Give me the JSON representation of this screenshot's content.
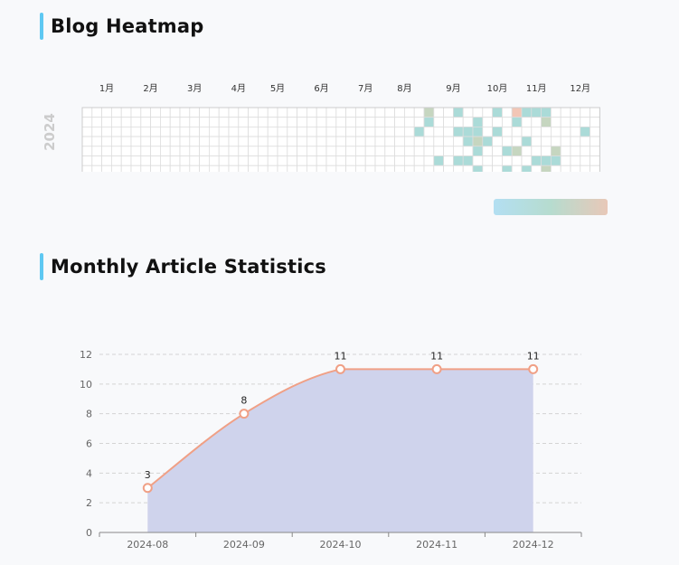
{
  "heatmap_section": {
    "title": "Blog Heatmap",
    "year_label": "2024",
    "month_labels": [
      "1月",
      "2月",
      "3月",
      "4月",
      "5月",
      "6月",
      "7月",
      "8月",
      "9月",
      "10月",
      "11月",
      "12月"
    ],
    "colors": {
      "empty": "#ffffff",
      "grid": "#dddddd",
      "low": "#abdbd8",
      "mid": "#c6d6c0",
      "high": "#f2c6b6"
    },
    "visual_map_colors": [
      "#b3dff2",
      "#b6dccf",
      "#e8c8b8"
    ]
  },
  "stats_section": {
    "title": "Monthly Article Statistics"
  },
  "chart_data": [
    {
      "type": "heatmap",
      "calendar_range": "2024",
      "cells": [
        {
          "week": 35,
          "day": 0,
          "level": 2
        },
        {
          "week": 35,
          "day": 1,
          "level": 1
        },
        {
          "week": 34,
          "day": 2,
          "level": 1
        },
        {
          "week": 36,
          "day": 5,
          "level": 1
        },
        {
          "week": 38,
          "day": 0,
          "level": 1
        },
        {
          "week": 38,
          "day": 2,
          "level": 1
        },
        {
          "week": 39,
          "day": 2,
          "level": 1
        },
        {
          "week": 39,
          "day": 3,
          "level": 1
        },
        {
          "week": 40,
          "day": 1,
          "level": 1
        },
        {
          "week": 40,
          "day": 2,
          "level": 1
        },
        {
          "week": 40,
          "day": 3,
          "level": 2
        },
        {
          "week": 40,
          "day": 4,
          "level": 1
        },
        {
          "week": 38,
          "day": 5,
          "level": 1
        },
        {
          "week": 39,
          "day": 5,
          "level": 1
        },
        {
          "week": 40,
          "day": 6,
          "level": 1
        },
        {
          "week": 41,
          "day": 3,
          "level": 1
        },
        {
          "week": 42,
          "day": 0,
          "level": 1
        },
        {
          "week": 42,
          "day": 2,
          "level": 1
        },
        {
          "week": 43,
          "day": 4,
          "level": 1
        },
        {
          "week": 43,
          "day": 6,
          "level": 1
        },
        {
          "week": 44,
          "day": 0,
          "level": 3
        },
        {
          "week": 44,
          "day": 1,
          "level": 1
        },
        {
          "week": 44,
          "day": 4,
          "level": 2
        },
        {
          "week": 45,
          "day": 0,
          "level": 1
        },
        {
          "week": 45,
          "day": 3,
          "level": 1
        },
        {
          "week": 45,
          "day": 6,
          "level": 1
        },
        {
          "week": 46,
          "day": 0,
          "level": 1
        },
        {
          "week": 46,
          "day": 5,
          "level": 1
        },
        {
          "week": 47,
          "day": 0,
          "level": 1
        },
        {
          "week": 47,
          "day": 1,
          "level": 2
        },
        {
          "week": 47,
          "day": 6,
          "level": 2
        },
        {
          "week": 48,
          "day": 4,
          "level": 2
        },
        {
          "week": 48,
          "day": 5,
          "level": 1
        },
        {
          "week": 47,
          "day": 5,
          "level": 1
        },
        {
          "week": 51,
          "day": 2,
          "level": 1
        }
      ]
    },
    {
      "type": "area",
      "categories": [
        "2024-08",
        "2024-09",
        "2024-10",
        "2024-11",
        "2024-12"
      ],
      "series": [
        {
          "values": [
            3,
            8,
            11,
            11,
            11
          ]
        }
      ],
      "y_ticks": [
        0,
        2,
        4,
        6,
        8,
        10,
        12
      ],
      "ylim": [
        0,
        12
      ],
      "grid": true,
      "line_color": "#f0a086",
      "area_color": "#cfd3ec"
    }
  ]
}
